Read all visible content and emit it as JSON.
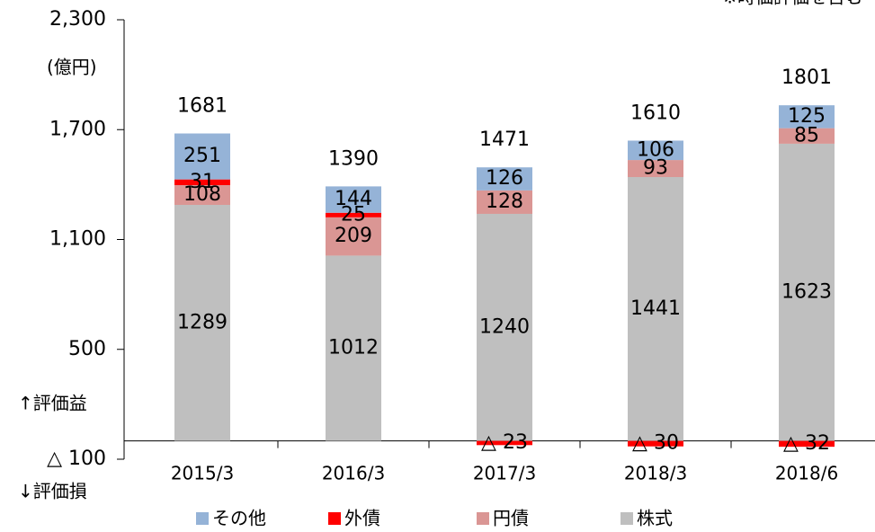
{
  "chart_data": {
    "type": "stacked-bar",
    "unit_label": "(億円)",
    "note": "※時価評価を含む",
    "gain_label": "↑評価益",
    "loss_label": "↓評価損",
    "categories": [
      "2015/3",
      "2016/3",
      "2017/3",
      "2018/3",
      "2018/6"
    ],
    "series": [
      {
        "name": "株式",
        "color": "#bfbfbf",
        "values": [
          1289,
          1012,
          1240,
          1441,
          1623
        ]
      },
      {
        "name": "円債",
        "color": "#da9694",
        "values": [
          108,
          209,
          128,
          93,
          85
        ]
      },
      {
        "name": "外債",
        "color": "#ff0000",
        "values": [
          31,
          25,
          -23,
          -30,
          -32
        ],
        "value_labels": [
          "31",
          "25",
          "△ 23",
          "△ 30",
          "△ 32"
        ]
      },
      {
        "name": "その他",
        "color": "#95b3d7",
        "values": [
          251,
          144,
          126,
          106,
          125
        ]
      }
    ],
    "totals": [
      1681,
      1390,
      1471,
      1610,
      1801
    ],
    "legend_order": [
      3,
      2,
      1,
      0
    ],
    "ylim": [
      -100,
      2300
    ],
    "yticks": [
      {
        "value": -100,
        "label": "△ 100"
      },
      500,
      {
        "value": 1100,
        "label": "1,100"
      },
      {
        "value": 1700,
        "label": "1,700"
      },
      {
        "value": 2300,
        "label": "2,300"
      }
    ]
  }
}
